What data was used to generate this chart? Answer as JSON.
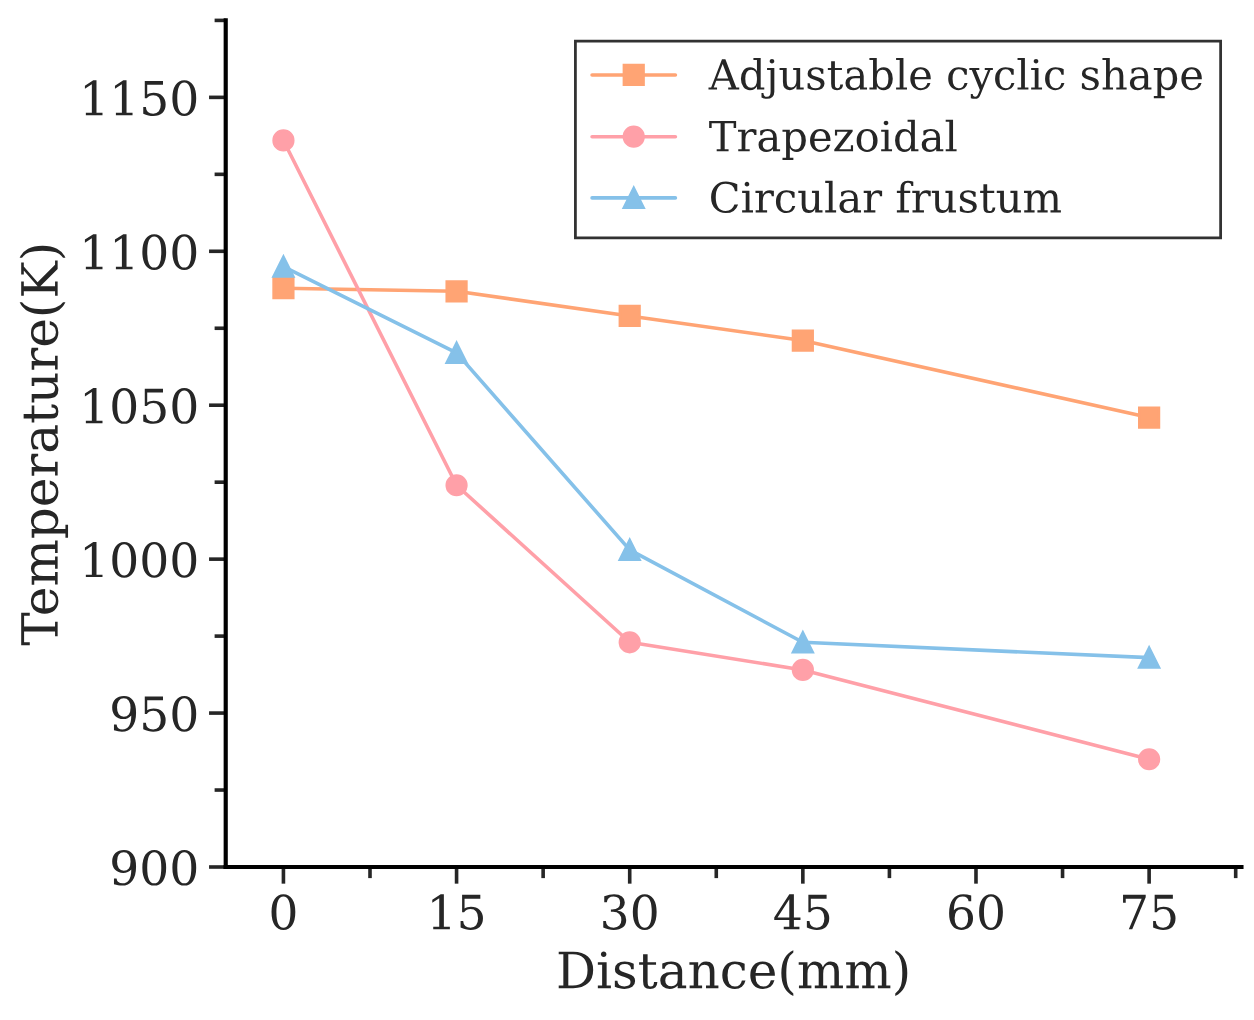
{
  "chart_data": {
    "type": "line",
    "xlabel": "Distance(mm)",
    "ylabel": "Temperature(K)",
    "x": [
      0,
      15,
      30,
      45,
      75
    ],
    "series": [
      {
        "name": "Adjustable cyclic shape",
        "color": "#ffa474",
        "marker": "square",
        "values": [
          1088,
          1087,
          1079,
          1071,
          1046
        ]
      },
      {
        "name": "Trapezoidal",
        "color": "#ffa0a8",
        "marker": "circle",
        "values": [
          1136,
          1024,
          973,
          964,
          935
        ]
      },
      {
        "name": "Circular frustum",
        "color": "#85c1e9",
        "marker": "triangle",
        "values": [
          1095,
          1067,
          1003,
          973,
          968
        ]
      }
    ],
    "xlim": [
      -5,
      83
    ],
    "xticks": [
      0,
      15,
      30,
      45,
      60,
      75
    ],
    "ylim": [
      900,
      1175
    ],
    "yticks": [
      900,
      950,
      1000,
      1050,
      1100,
      1150
    ],
    "grid": false,
    "legend": "top right",
    "line_style": "solid"
  }
}
